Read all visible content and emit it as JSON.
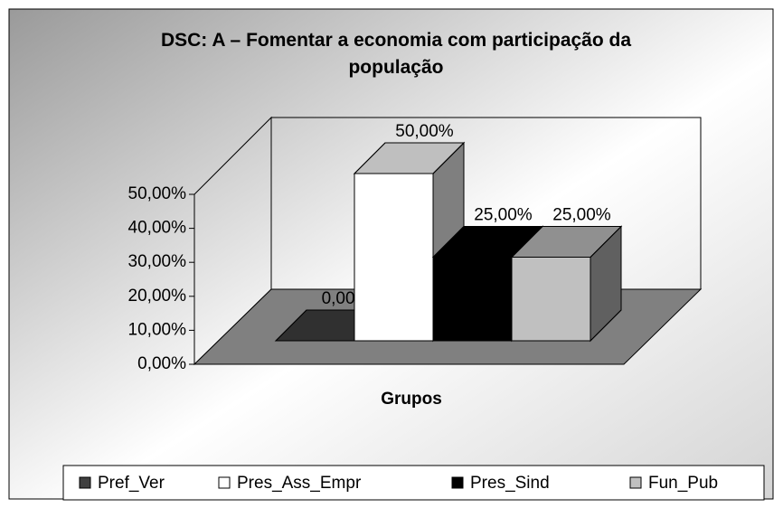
{
  "chart_data": {
    "type": "bar",
    "title": "DSC: A – Fomentar a economia com participação da população",
    "x_label": "Grupos",
    "series": [
      {
        "name": "Pref_Ver",
        "color": "#404040",
        "values": [
          0
        ],
        "value_labels": [
          "0,00%"
        ]
      },
      {
        "name": "Pres_Ass_Empr",
        "color": "#ffffff",
        "values": [
          50
        ],
        "value_labels": [
          "50,00%"
        ]
      },
      {
        "name": "Pres_Sind",
        "color": "#000000",
        "values": [
          25
        ],
        "value_labels": [
          "25,00%"
        ]
      },
      {
        "name": "Fun_Pub",
        "color": "#c0c0c0",
        "values": [
          25
        ],
        "value_labels": [
          "25,00%"
        ]
      }
    ],
    "ylim": [
      0,
      50
    ],
    "yticks": [
      {
        "value": 0,
        "label": "0,00%"
      },
      {
        "value": 10,
        "label": "10,00%"
      },
      {
        "value": 20,
        "label": "20,00%"
      },
      {
        "value": 30,
        "label": "30,00%"
      },
      {
        "value": 40,
        "label": "40,00%"
      },
      {
        "value": 50,
        "label": "50,00%"
      }
    ],
    "legend": "bottom"
  }
}
